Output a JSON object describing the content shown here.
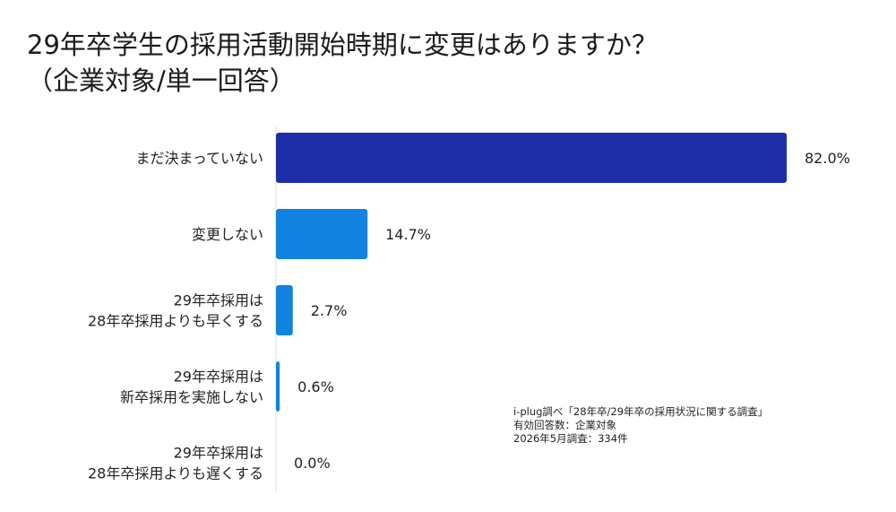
{
  "title": {
    "line1": "29年卒学生の採用活動開始時期に変更はありますか？",
    "line2": "（企業対象/単一回答）"
  },
  "colors": {
    "highlight_bar": "#1e2ea8",
    "bar": "#1283e0",
    "text": "#222222"
  },
  "chart_data": {
    "type": "bar",
    "orientation": "horizontal",
    "categories": [
      [
        "まだ決まっていない"
      ],
      [
        "変更しない"
      ],
      [
        "29年卒採用は",
        "28年卒採用よりも早くする"
      ],
      [
        "29年卒採用は",
        "新卒採用を実施しない"
      ],
      [
        "29年卒採用は",
        "28年卒採用よりも遅くする"
      ]
    ],
    "values": [
      82.0,
      14.7,
      2.7,
      0.6,
      0.0
    ],
    "value_labels": [
      "82.0%",
      "14.7%",
      "2.7%",
      "0.6%",
      "0.0%"
    ],
    "unit": "%",
    "xlim": [
      0,
      82.0
    ],
    "grid": false,
    "legend": "none"
  },
  "source": {
    "line1": "i-plug調べ「28年卒/29年卒の採用状況に関する調査」",
    "line2": "有効回答数：企業対象",
    "line3": "2026年5月調査：334件"
  }
}
